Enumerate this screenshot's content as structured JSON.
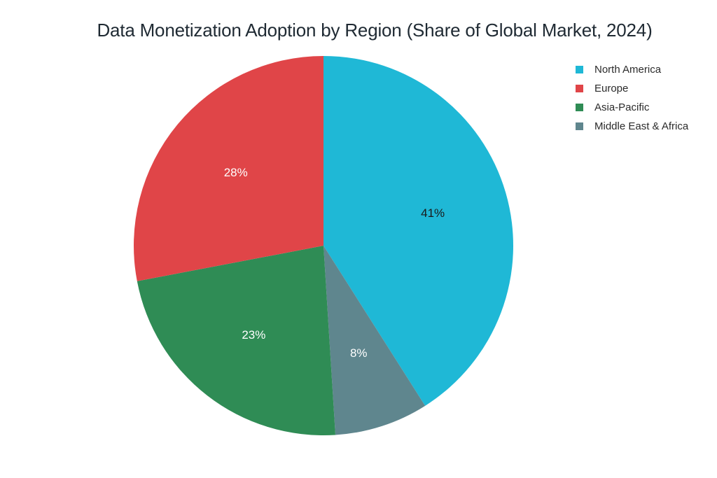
{
  "chart_data": {
    "type": "pie",
    "title": "Data Monetization Adoption by Region (Share of Global Market, 2024)",
    "categories": [
      "North America",
      "Europe",
      "Asia-Pacific",
      "Middle East & Africa"
    ],
    "values": [
      41,
      28,
      23,
      8
    ],
    "labels": [
      "41%",
      "28%",
      "23%",
      "8%"
    ],
    "colors": [
      "#1fb8d6",
      "#e04548",
      "#2f8c55",
      "#5f868e"
    ],
    "label_colors": [
      "#1a1a1a",
      "#ffffff",
      "#ffffff",
      "#ffffff"
    ],
    "slice_order": [
      0,
      3,
      2,
      1
    ],
    "start_angle": "12 o'clock",
    "direction": "clockwise",
    "legend_position": "top-right"
  }
}
